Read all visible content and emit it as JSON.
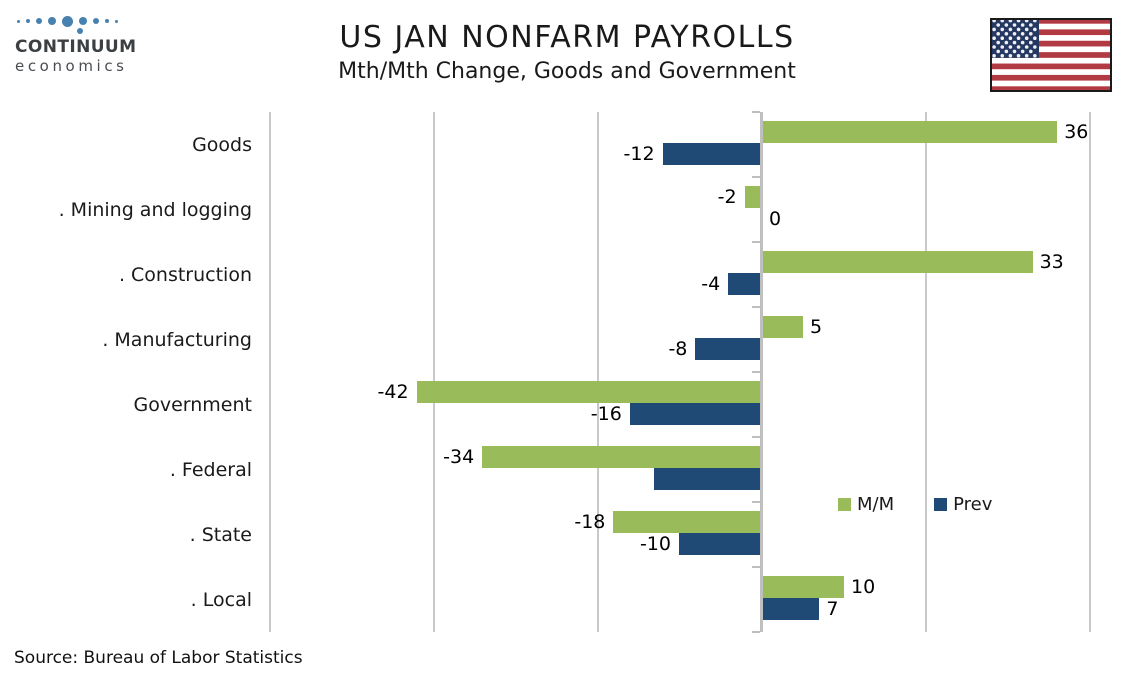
{
  "header": {
    "logo": {
      "brand": "CONTINUUM",
      "sub": "economics",
      "icon": "continuum-dots-logo"
    },
    "title": "US JAN NONFARM PAYROLLS",
    "subtitle": "Mth/Mth Change, Goods and Government",
    "flag_icon": "us-flag"
  },
  "chart_data": {
    "type": "bar",
    "orientation": "horizontal",
    "title": "US JAN NONFARM PAYROLLS",
    "subtitle": "Mth/Mth Change, Goods and Government",
    "categories": [
      "Goods",
      ". Mining and logging",
      ". Construction",
      ". Manufacturing",
      "Government",
      ". Federal",
      ". State",
      ". Local"
    ],
    "series": [
      {
        "name": "M/M",
        "color": "#9abb59",
        "values": [
          36,
          -2,
          33,
          5,
          -42,
          -34,
          -18,
          10
        ],
        "labels": [
          "36",
          "-2",
          "33",
          "5",
          "-42",
          "-34",
          "-18",
          "10"
        ]
      },
      {
        "name": "Prev",
        "color": "#1f4a75",
        "values": [
          -12,
          0,
          -4,
          -8,
          -16,
          -13,
          -10,
          7
        ],
        "labels": [
          "-12",
          "0",
          "-4",
          "-8",
          "-16",
          "",
          "-10",
          "7"
        ]
      }
    ],
    "xlim": [
      -60,
      40
    ],
    "gridline_step": 20,
    "grid": true,
    "legend_position": "inside-right",
    "colors": {
      "grid": "#c9c9c9",
      "axis": "#bfbfbf"
    }
  },
  "source": "Source: Bureau of Labor Statistics"
}
